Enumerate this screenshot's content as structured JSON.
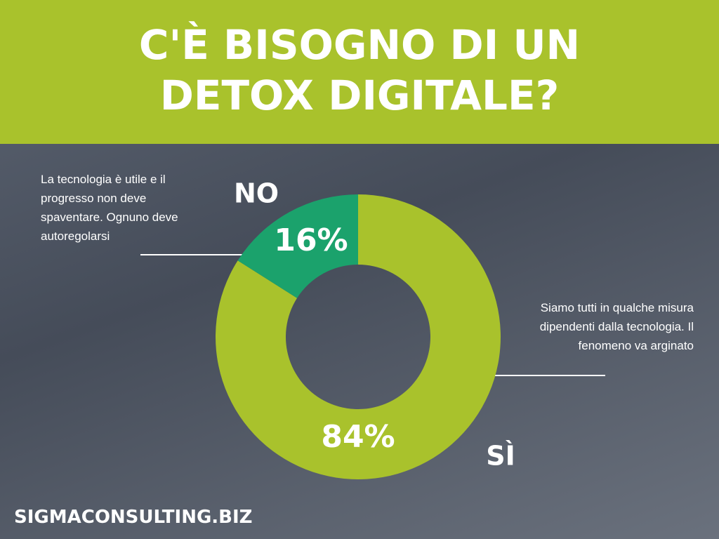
{
  "chart_data": {
    "type": "pie",
    "donut": true,
    "title": "C'È BISOGNO DI UN DETOX DIGITALE?",
    "categories": [
      "SÌ",
      "NO"
    ],
    "values": [
      84,
      16
    ],
    "value_labels": [
      "84%",
      "16%"
    ],
    "colors": [
      "#a9c22c",
      "#1ba26c"
    ],
    "annotations": [
      "Siamo tutti in qualche misura dipendenti dalla tecnologia. Il fenomeno va arginato",
      "La tecnologia è utile e il progresso non deve spaventare. Ognuno deve autoregolarsi"
    ],
    "footer": "SIGMACONSULTING.BIZ"
  }
}
